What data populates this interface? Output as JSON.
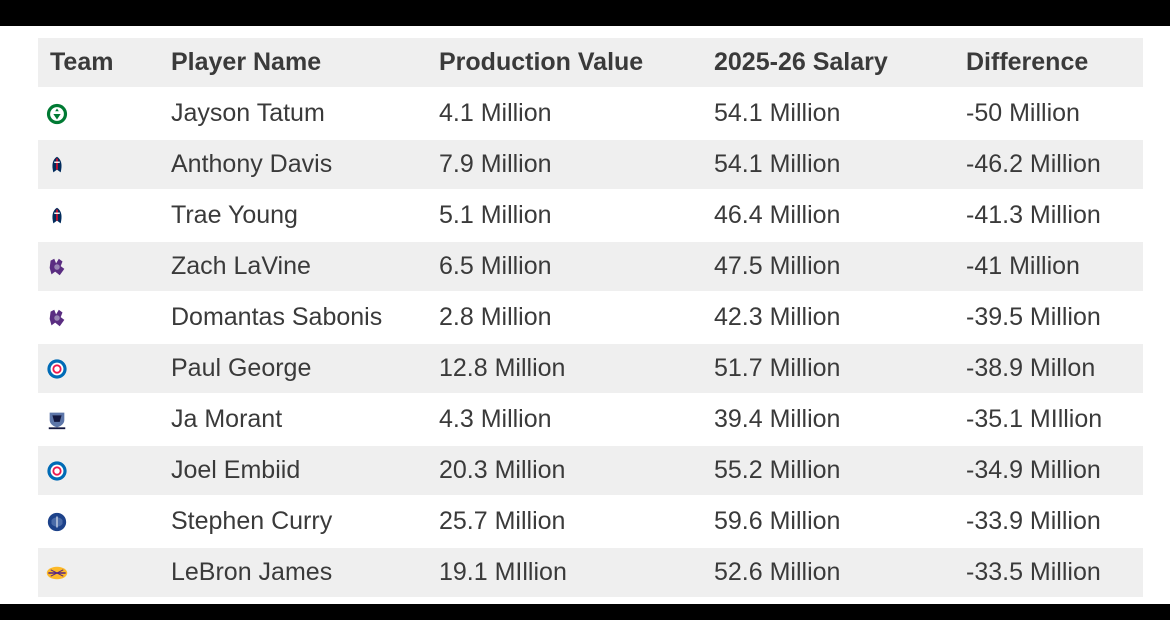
{
  "table": {
    "headers": [
      "Team",
      "Player Name",
      "Production Value",
      "2025-26 Salary",
      "Difference"
    ],
    "rows": [
      {
        "team_icon": "celtics-logo-icon",
        "player": "Jayson Tatum",
        "production": "4.1 Million",
        "salary": "54.1 Million",
        "difference": "-50 Million"
      },
      {
        "team_icon": "wizards-logo-icon",
        "player": "Anthony Davis",
        "production": "7.9 Million",
        "salary": "54.1 Million",
        "difference": "-46.2 Million"
      },
      {
        "team_icon": "wizards-logo-icon",
        "player": "Trae Young",
        "production": "5.1 Million",
        "salary": "46.4 Million",
        "difference": "-41.3 Million"
      },
      {
        "team_icon": "kings-logo-icon",
        "player": "Zach LaVine",
        "production": "6.5 Million",
        "salary": "47.5 Million",
        "difference": "-41 Million"
      },
      {
        "team_icon": "kings-logo-icon",
        "player": "Domantas Sabonis",
        "production": "2.8 Million",
        "salary": "42.3 Million",
        "difference": "-39.5 Million"
      },
      {
        "team_icon": "76ers-logo-icon",
        "player": "Paul George",
        "production": "12.8 Million",
        "salary": "51.7 Million",
        "difference": "-38.9 Millon"
      },
      {
        "team_icon": "grizzlies-logo-icon",
        "player": "Ja Morant",
        "production": "4.3 Million",
        "salary": "39.4 Million",
        "difference": "-35.1 MIllion"
      },
      {
        "team_icon": "76ers-logo-icon",
        "player": "Joel Embiid",
        "production": "20.3 Million",
        "salary": "55.2 Million",
        "difference": "-34.9 Million"
      },
      {
        "team_icon": "warriors-logo-icon",
        "player": "Stephen Curry",
        "production": "25.7 Million",
        "salary": "59.6 Million",
        "difference": "-33.9 Million"
      },
      {
        "team_icon": "lakers-logo-icon",
        "player": "LeBron James",
        "production": "19.1 MIllion",
        "salary": "52.6 Million",
        "difference": "-33.5 Million"
      }
    ]
  },
  "colors": {
    "row_stripe": "#efefef",
    "text": "#3a3a3a",
    "celtics": "#007a33",
    "wizards": "#002b5c",
    "kings": "#5a2d81",
    "sixers": "#006bb6",
    "grizzlies": "#5d76a9",
    "warriors": "#1d428a",
    "lakers": "#552583"
  }
}
